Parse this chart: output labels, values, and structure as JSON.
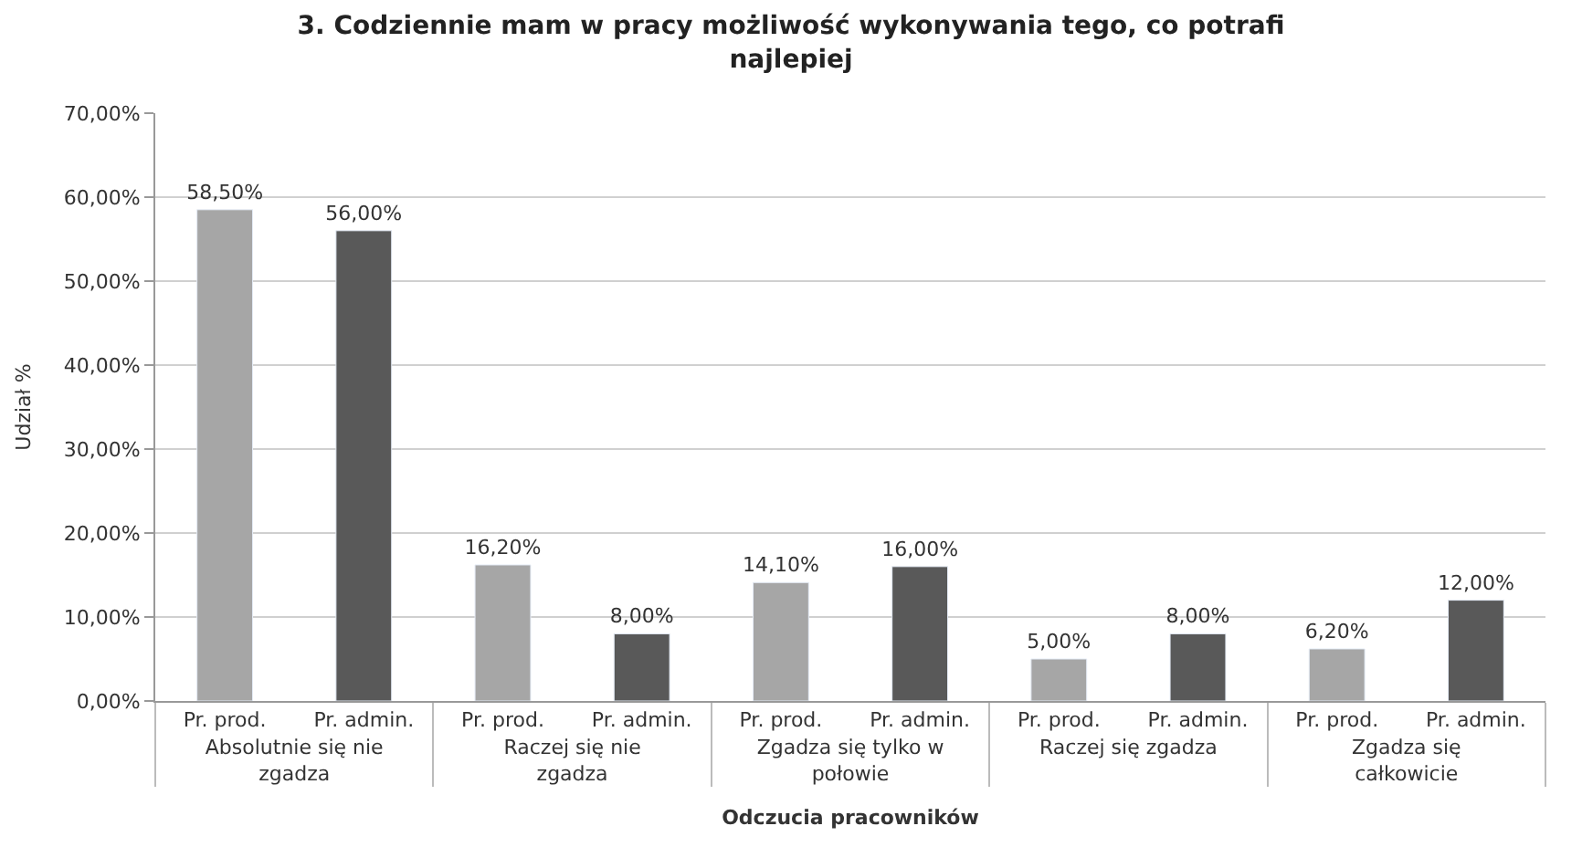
{
  "chart_data": {
    "type": "bar",
    "title": "3. Codziennie mam w pracy możliwość wykonywania tego, co potrafi najlepiej",
    "xlabel": "Odczucia pracowników",
    "ylabel": "Udział %",
    "categories": [
      "Absolutnie się nie zgadza",
      "Raczej się nie zgadza",
      "Zgadza się tylko w połowie",
      "Raczej się zgadza",
      "Zgadza się całkowicie"
    ],
    "series": [
      {
        "name": "Pr. prod.",
        "color": "#a6a6a6",
        "values": [
          58.5,
          16.2,
          14.1,
          5.0,
          6.2
        ],
        "value_labels": [
          "58,50%",
          "16,20%",
          "14,10%",
          "5,00%",
          "6,20%"
        ]
      },
      {
        "name": "Pr. admin.",
        "color": "#595959",
        "values": [
          56.0,
          8.0,
          16.0,
          8.0,
          12.0
        ],
        "value_labels": [
          "56,00%",
          "8,00%",
          "16,00%",
          "8,00%",
          "12,00%"
        ]
      }
    ],
    "ylim": [
      0,
      70
    ],
    "yticks": [
      {
        "value": 0,
        "label": "0,00%"
      },
      {
        "value": 10,
        "label": "10,00%"
      },
      {
        "value": 20,
        "label": "20,00%"
      },
      {
        "value": 30,
        "label": "30,00%"
      },
      {
        "value": 40,
        "label": "40,00%"
      },
      {
        "value": 50,
        "label": "50,00%"
      },
      {
        "value": 60,
        "label": "60,00%"
      },
      {
        "value": 70,
        "label": "70,00%"
      }
    ],
    "grid": "y",
    "legend": false
  }
}
